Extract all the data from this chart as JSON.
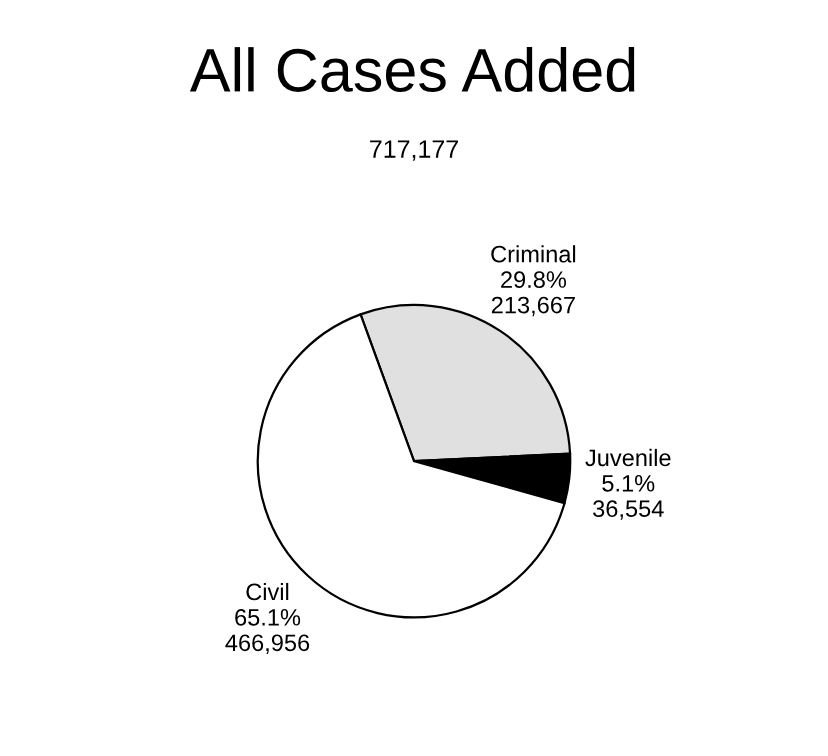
{
  "chart_data": {
    "type": "pie",
    "title": "All Cases Added",
    "subtitle": "717,177",
    "categories": [
      "Criminal",
      "Juvenile",
      "Civil"
    ],
    "values": [
      213667,
      36554,
      466956
    ],
    "colors": [
      "#e0e0e0",
      "#000000",
      "#ffffff"
    ],
    "value_labels": [
      "29.8%\n213,667",
      "5.1%\n36,554",
      "65.1%\n466,956"
    ],
    "legend": false
  }
}
